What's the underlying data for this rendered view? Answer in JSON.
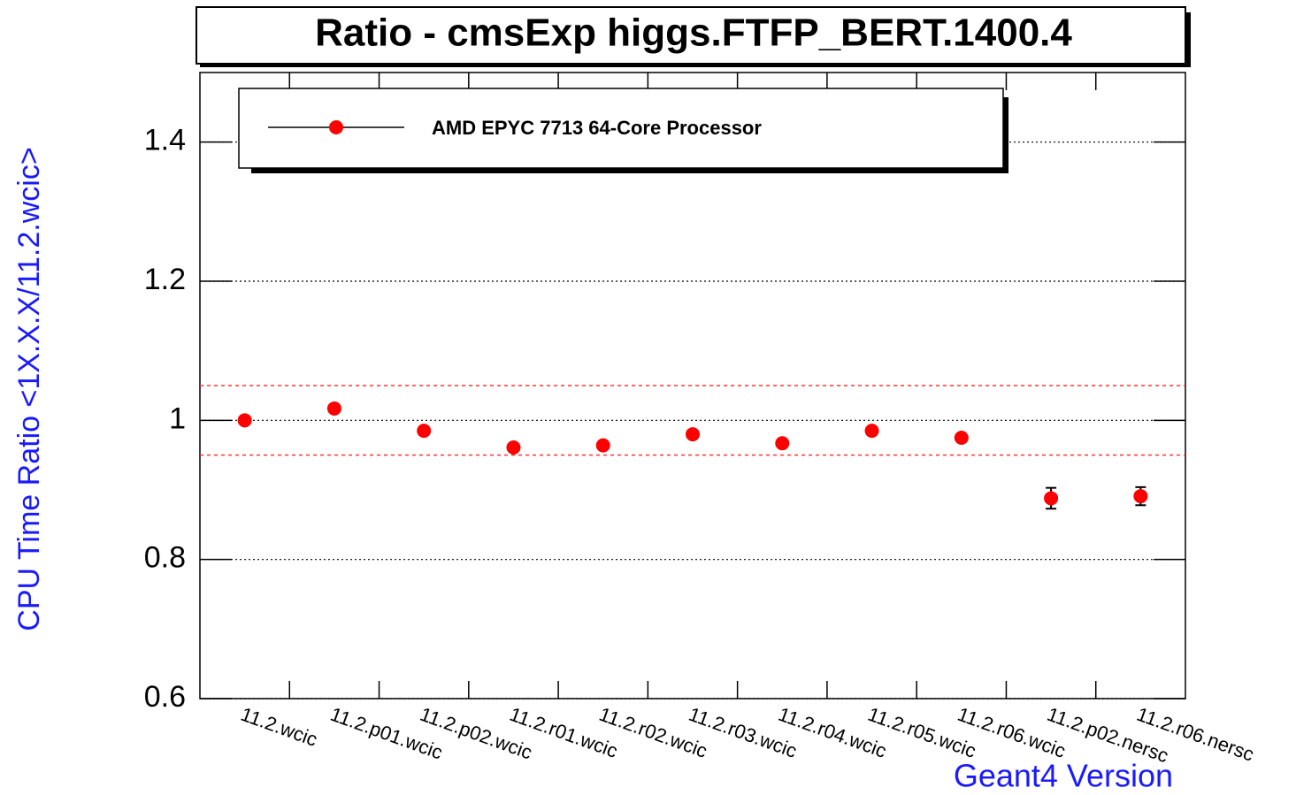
{
  "chart_data": {
    "type": "scatter",
    "title": "Ratio - cmsExp higgs.FTFP_BERT.1400.4",
    "xlabel": "Geant4 Version",
    "ylabel": "CPU Time Ratio <1X.X.X/11.2.wcic>",
    "categories": [
      "11.2.wcic",
      "11.2.p01.wcic",
      "11.2.p02.wcic",
      "11.2.r01.wcic",
      "11.2.r02.wcic",
      "11.2.r03.wcic",
      "11.2.r04.wcic",
      "11.2.r05.wcic",
      "11.2.r06.wcic",
      "11.2.p02.nersc",
      "11.2.r06.nersc"
    ],
    "series": [
      {
        "name": "AMD EPYC 7713 64-Core Processor",
        "color": "#ff0000",
        "values": [
          1.0,
          1.017,
          0.985,
          0.961,
          0.964,
          0.98,
          0.967,
          0.985,
          0.975,
          0.888,
          0.891
        ],
        "errors": [
          0.003,
          0.003,
          0.003,
          0.003,
          0.003,
          0.003,
          0.003,
          0.003,
          0.003,
          0.015,
          0.013
        ]
      }
    ],
    "reference_lines": [
      0.95,
      1.05
    ],
    "ylim": [
      0.6,
      1.5
    ],
    "yticks": [
      0.6,
      0.8,
      1,
      1.2,
      1.4
    ],
    "grid": true
  }
}
